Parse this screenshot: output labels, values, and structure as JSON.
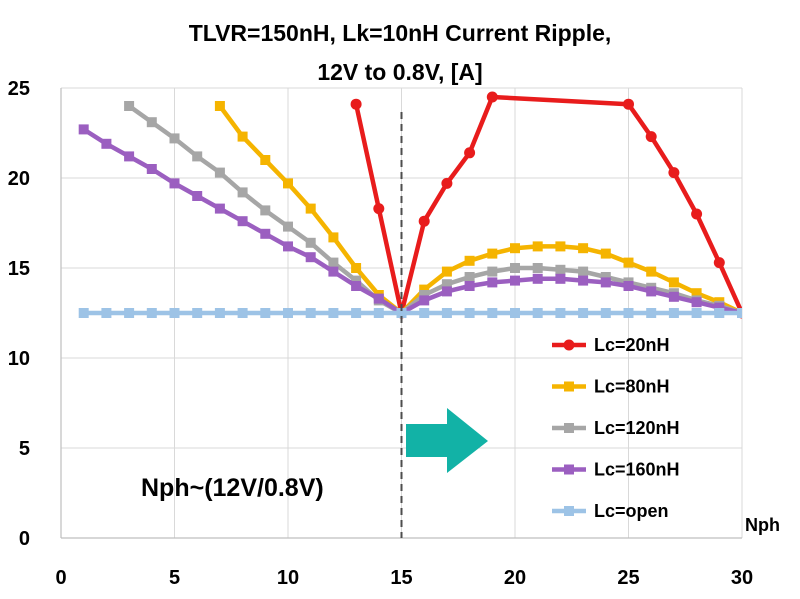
{
  "chart_data": {
    "type": "line",
    "title_line1": "TLVR=150nH, Lk=10nH Current Ripple,",
    "title_line2": "12V to 0.8V, [A]",
    "xlabel": "Nph",
    "ylabel": "",
    "xlim": [
      0,
      30
    ],
    "ylim": [
      0,
      25
    ],
    "x_ticks": [
      0,
      5,
      10,
      15,
      20,
      25,
      30
    ],
    "y_ticks": [
      0,
      5,
      10,
      15,
      20,
      25
    ],
    "grid": true,
    "legend_position": "bottom-right",
    "annotation": "Nph~(12V/0.8V)",
    "marker_line_x": 15,
    "series": [
      {
        "name": "Lc=20nH",
        "color": "#e81c1c",
        "marker": "circle",
        "x": [
          13,
          14,
          15,
          16,
          17,
          18,
          19,
          25,
          26,
          27,
          28,
          29,
          30
        ],
        "y": [
          24.1,
          18.3,
          12.5,
          17.6,
          19.7,
          21.4,
          24.5,
          24.1,
          22.3,
          20.3,
          18.0,
          15.3,
          12.5
        ]
      },
      {
        "name": "Lc=80nH",
        "color": "#f5b400",
        "marker": "square",
        "x": [
          7,
          8,
          9,
          10,
          11,
          12,
          13,
          14,
          15,
          16,
          17,
          18,
          19,
          20,
          21,
          22,
          23,
          24,
          25,
          26,
          27,
          28,
          29,
          30
        ],
        "y": [
          24.0,
          22.3,
          21.0,
          19.7,
          18.3,
          16.7,
          15.0,
          13.5,
          12.5,
          13.8,
          14.8,
          15.4,
          15.8,
          16.1,
          16.2,
          16.2,
          16.1,
          15.8,
          15.3,
          14.8,
          14.2,
          13.6,
          13.1,
          12.5
        ]
      },
      {
        "name": "Lc=120nH",
        "color": "#a6a6a6",
        "marker": "square",
        "x": [
          3,
          4,
          5,
          6,
          7,
          8,
          9,
          10,
          11,
          12,
          13,
          14,
          15,
          16,
          17,
          18,
          19,
          20,
          21,
          22,
          23,
          24,
          25,
          26,
          27,
          28,
          29,
          30
        ],
        "y": [
          24.0,
          23.1,
          22.2,
          21.2,
          20.3,
          19.2,
          18.2,
          17.3,
          16.4,
          15.3,
          14.3,
          13.2,
          12.5,
          13.5,
          14.1,
          14.5,
          14.8,
          15.0,
          15.0,
          14.9,
          14.8,
          14.5,
          14.2,
          13.9,
          13.6,
          13.2,
          12.9,
          12.5
        ]
      },
      {
        "name": "Lc=160nH",
        "color": "#9b5fc0",
        "marker": "square",
        "x": [
          1,
          2,
          3,
          4,
          5,
          6,
          7,
          8,
          9,
          10,
          11,
          12,
          13,
          14,
          15,
          16,
          17,
          18,
          19,
          20,
          21,
          22,
          23,
          24,
          25,
          26,
          27,
          28,
          29,
          30
        ],
        "y": [
          22.7,
          21.9,
          21.2,
          20.5,
          19.7,
          19.0,
          18.3,
          17.6,
          16.9,
          16.2,
          15.6,
          14.8,
          14.0,
          13.3,
          12.5,
          13.2,
          13.7,
          14.0,
          14.2,
          14.3,
          14.4,
          14.4,
          14.3,
          14.2,
          14.0,
          13.7,
          13.4,
          13.1,
          12.8,
          12.5
        ]
      },
      {
        "name": "Lc=open",
        "color": "#9dc3e6",
        "marker": "square",
        "x": [
          1,
          2,
          3,
          4,
          5,
          6,
          7,
          8,
          9,
          10,
          11,
          12,
          13,
          14,
          15,
          16,
          17,
          18,
          19,
          20,
          21,
          22,
          23,
          24,
          25,
          26,
          27,
          28,
          29,
          30
        ],
        "y": [
          12.5,
          12.5,
          12.5,
          12.5,
          12.5,
          12.5,
          12.5,
          12.5,
          12.5,
          12.5,
          12.5,
          12.5,
          12.5,
          12.5,
          12.5,
          12.5,
          12.5,
          12.5,
          12.5,
          12.5,
          12.5,
          12.5,
          12.5,
          12.5,
          12.5,
          12.5,
          12.5,
          12.5,
          12.5,
          12.5
        ]
      }
    ]
  },
  "colors": {
    "arrow": "#12b2a6",
    "grid": "#d9d9d9",
    "dashed_line": "#4d4d4d"
  }
}
